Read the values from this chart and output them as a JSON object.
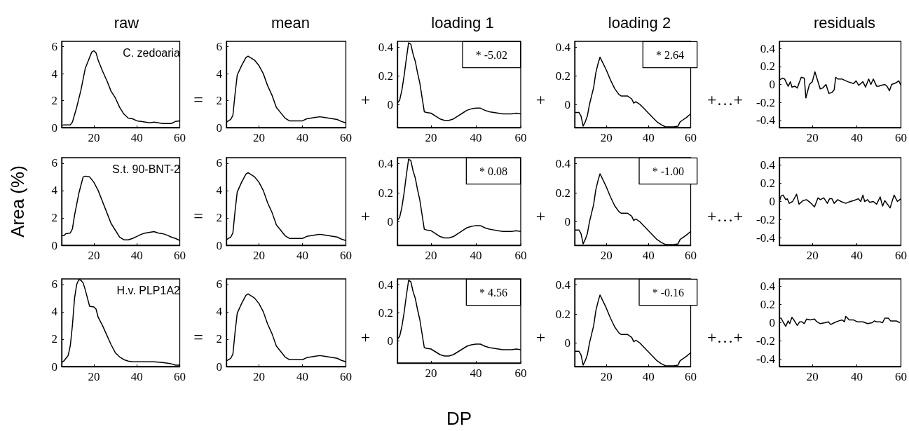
{
  "chart_data": [
    {
      "type": "line",
      "title": "raw",
      "color": "#000000",
      "xlim": [
        5,
        60
      ],
      "ylim": [
        0,
        6.4
      ],
      "xticks": [
        20,
        40,
        60
      ],
      "yticks": [
        0,
        2,
        4,
        6
      ],
      "annotations": [
        "C. zedoaria"
      ],
      "x": [
        5,
        6,
        9,
        10,
        12,
        14,
        16,
        18,
        19,
        20,
        21,
        22,
        24,
        26,
        28,
        30,
        32,
        34,
        36,
        38,
        40,
        42,
        44,
        46,
        48,
        50,
        52,
        54,
        56,
        58,
        60
      ],
      "values": [
        0.15,
        0.2,
        0.2,
        0.4,
        1.5,
        2.8,
        4.4,
        5.2,
        5.6,
        5.7,
        5.55,
        5.0,
        4.2,
        3.5,
        2.7,
        2.2,
        1.5,
        1.0,
        0.7,
        0.65,
        0.5,
        0.45,
        0.4,
        0.35,
        0.4,
        0.35,
        0.3,
        0.3,
        0.3,
        0.45,
        0.5
      ]
    },
    {
      "type": "line",
      "title": "mean",
      "color": "#000000",
      "xlim": [
        5,
        60
      ],
      "ylim": [
        0,
        6.4
      ],
      "xticks": [
        20,
        40,
        60
      ],
      "yticks": [
        0,
        2,
        4,
        6
      ],
      "annotations": [
        "="
      ],
      "x": [
        5,
        6,
        7,
        8,
        9,
        10,
        12,
        14,
        15,
        16,
        18,
        20,
        22,
        24,
        26,
        28,
        30,
        32,
        34,
        36,
        38,
        40,
        42,
        44,
        46,
        48,
        50,
        52,
        54,
        56,
        58,
        60
      ],
      "values": [
        0.4,
        0.5,
        0.6,
        0.9,
        2.5,
        3.9,
        4.6,
        5.2,
        5.3,
        5.2,
        5.0,
        4.6,
        4.0,
        3.1,
        2.4,
        1.5,
        1.1,
        0.7,
        0.5,
        0.5,
        0.5,
        0.5,
        0.65,
        0.7,
        0.75,
        0.8,
        0.75,
        0.7,
        0.65,
        0.6,
        0.45,
        0.35
      ]
    },
    {
      "type": "line",
      "title": "loading 1",
      "color": "#000000",
      "xlim": [
        5,
        60
      ],
      "ylim": [
        -0.16,
        0.44
      ],
      "xticks": [
        20,
        40,
        60
      ],
      "yticks": [
        0,
        0.2,
        0.4
      ],
      "annotations": [
        "+",
        "* -5.02"
      ],
      "x": [
        5,
        6,
        7,
        8,
        9,
        10,
        11,
        12,
        13,
        14,
        15,
        16,
        17,
        18,
        20,
        22,
        24,
        26,
        28,
        30,
        32,
        34,
        36,
        38,
        40,
        42,
        44,
        46,
        48,
        50,
        52,
        54,
        56,
        58,
        60
      ],
      "values": [
        0.01,
        0.03,
        0.1,
        0.2,
        0.32,
        0.43,
        0.42,
        0.35,
        0.3,
        0.22,
        0.15,
        0.05,
        -0.05,
        -0.055,
        -0.06,
        -0.08,
        -0.1,
        -0.11,
        -0.11,
        -0.1,
        -0.08,
        -0.06,
        -0.04,
        -0.03,
        -0.025,
        -0.025,
        -0.04,
        -0.05,
        -0.055,
        -0.06,
        -0.065,
        -0.065,
        -0.065,
        -0.06,
        -0.065
      ]
    },
    {
      "type": "line",
      "title": "loading 2",
      "color": "#000000",
      "xlim": [
        5,
        60
      ],
      "ylim": [
        -0.16,
        0.44
      ],
      "xticks": [
        20,
        40,
        60
      ],
      "yticks": [
        0,
        0.2,
        0.4
      ],
      "annotations": [
        "+",
        "* 2.64"
      ],
      "x": [
        5,
        7,
        8,
        9,
        10,
        11,
        12,
        14,
        15,
        16,
        17,
        18,
        20,
        22,
        24,
        26,
        27,
        28,
        30,
        32,
        33,
        34,
        36,
        38,
        40,
        42,
        44,
        46,
        48,
        50,
        52,
        54,
        55,
        56,
        58,
        60
      ],
      "values": [
        -0.055,
        -0.055,
        -0.08,
        -0.15,
        -0.12,
        -0.08,
        0.0,
        0.12,
        0.22,
        0.28,
        0.33,
        0.3,
        0.24,
        0.17,
        0.11,
        0.07,
        0.06,
        0.06,
        0.06,
        0.04,
        0.01,
        0.02,
        0.0,
        -0.03,
        -0.06,
        -0.09,
        -0.12,
        -0.14,
        -0.155,
        -0.155,
        -0.155,
        -0.15,
        -0.12,
        -0.11,
        -0.09,
        -0.065
      ]
    },
    {
      "type": "line",
      "title": "residuals",
      "color": "#000000",
      "xlim": [
        5,
        60
      ],
      "ylim": [
        -0.48,
        0.48
      ],
      "xticks": [
        20,
        40,
        60
      ],
      "yticks": [
        -0.4,
        -0.2,
        0,
        0.2,
        0.4
      ],
      "annotations": [
        "+…+"
      ],
      "x": [
        5.0,
        6.4,
        7.4,
        9.0,
        10.0,
        10.7,
        12.1,
        13.1,
        14.9,
        16.3,
        17.0,
        18.6,
        19.9,
        21.1,
        23.5,
        24.6,
        26.1,
        27.4,
        28.8,
        29.8,
        30.5,
        31.4,
        33.4,
        36.0,
        38.6,
        39.7,
        40.9,
        42.8,
        44.0,
        45.4,
        46.4,
        47.5,
        49.0,
        50.0,
        51.1,
        52.7,
        53.7,
        54.8,
        55.8,
        57.9,
        59.0,
        60.0
      ],
      "values": [
        0.05,
        0.07,
        0.06,
        -0.02,
        0.03,
        -0.03,
        -0.02,
        -0.04,
        0.08,
        0.07,
        -0.15,
        0.0,
        0.03,
        0.14,
        -0.05,
        -0.04,
        0.0,
        -0.1,
        -0.09,
        -0.06,
        0.08,
        0.06,
        0.06,
        0.03,
        0.01,
        0.04,
        -0.01,
        0.03,
        -0.03,
        0.06,
        0.0,
        0.06,
        -0.02,
        -0.02,
        -0.01,
        0.0,
        -0.02,
        -0.07,
        0.0,
        0.02,
        0.04,
        -0.01
      ]
    },
    {
      "type": "line",
      "ylabel": "Area (%)",
      "color": "#000000",
      "xlim": [
        5,
        60
      ],
      "ylim": [
        0,
        6.4
      ],
      "xticks": [
        20,
        40,
        60
      ],
      "yticks": [
        0,
        2,
        4,
        6
      ],
      "annotations": [
        "S.t. 90-BNT-2"
      ],
      "x": [
        5,
        6,
        7,
        9,
        10,
        11,
        12,
        13,
        14,
        15,
        16,
        18,
        20,
        22,
        24,
        26,
        28,
        30,
        32,
        34,
        36,
        38,
        40,
        42,
        44,
        46,
        48,
        50,
        52,
        54,
        56,
        58,
        60
      ],
      "values": [
        0.7,
        0.7,
        0.85,
        0.9,
        1.2,
        2.2,
        3.0,
        3.8,
        4.4,
        5.0,
        5.05,
        5.0,
        4.6,
        4.0,
        3.2,
        2.4,
        1.6,
        1.1,
        0.6,
        0.4,
        0.4,
        0.5,
        0.65,
        0.8,
        0.9,
        0.95,
        1.0,
        0.9,
        0.85,
        0.75,
        0.6,
        0.5,
        0.35
      ]
    },
    {
      "type": "line",
      "color": "#000000",
      "xlim": [
        5,
        60
      ],
      "ylim": [
        0,
        6.4
      ],
      "xticks": [
        20,
        40,
        60
      ],
      "yticks": [
        0,
        2,
        4,
        6
      ],
      "annotations": [
        "="
      ],
      "x": [
        5,
        6,
        7,
        8,
        9,
        10,
        12,
        14,
        15,
        16,
        18,
        20,
        22,
        24,
        26,
        28,
        30,
        32,
        34,
        36,
        38,
        40,
        42,
        44,
        46,
        48,
        50,
        52,
        54,
        56,
        58,
        60
      ],
      "values": [
        0.4,
        0.5,
        0.6,
        0.9,
        2.5,
        3.9,
        4.6,
        5.2,
        5.3,
        5.2,
        5.0,
        4.6,
        4.0,
        3.1,
        2.4,
        1.5,
        1.1,
        0.7,
        0.5,
        0.5,
        0.5,
        0.5,
        0.65,
        0.7,
        0.75,
        0.8,
        0.75,
        0.7,
        0.65,
        0.6,
        0.45,
        0.35
      ]
    },
    {
      "type": "line",
      "color": "#000000",
      "xlim": [
        5,
        60
      ],
      "ylim": [
        -0.16,
        0.44
      ],
      "xticks": [
        20,
        40,
        60
      ],
      "yticks": [
        0,
        0.2,
        0.4
      ],
      "annotations": [
        "+",
        "* 0.08"
      ],
      "x": [
        5,
        6,
        7,
        8,
        9,
        10,
        11,
        12,
        13,
        14,
        15,
        16,
        17,
        18,
        20,
        22,
        24,
        26,
        28,
        30,
        32,
        34,
        36,
        38,
        40,
        42,
        44,
        46,
        48,
        50,
        52,
        54,
        56,
        58,
        60
      ],
      "values": [
        0.01,
        0.03,
        0.1,
        0.2,
        0.32,
        0.43,
        0.42,
        0.35,
        0.3,
        0.22,
        0.15,
        0.05,
        -0.05,
        -0.055,
        -0.06,
        -0.08,
        -0.1,
        -0.11,
        -0.11,
        -0.1,
        -0.08,
        -0.06,
        -0.04,
        -0.03,
        -0.025,
        -0.025,
        -0.04,
        -0.05,
        -0.055,
        -0.06,
        -0.065,
        -0.065,
        -0.065,
        -0.06,
        -0.065
      ]
    },
    {
      "type": "line",
      "color": "#000000",
      "xlim": [
        5,
        60
      ],
      "ylim": [
        -0.16,
        0.44
      ],
      "xticks": [
        20,
        40,
        60
      ],
      "yticks": [
        0,
        0.2,
        0.4
      ],
      "annotations": [
        "+",
        "* -1.00"
      ],
      "x": [
        5,
        7,
        8,
        9,
        10,
        11,
        12,
        14,
        15,
        16,
        17,
        18,
        20,
        22,
        24,
        26,
        27,
        28,
        30,
        32,
        33,
        34,
        36,
        38,
        40,
        42,
        44,
        46,
        48,
        50,
        52,
        54,
        55,
        56,
        58,
        60
      ],
      "values": [
        -0.055,
        -0.055,
        -0.08,
        -0.15,
        -0.12,
        -0.08,
        0.0,
        0.12,
        0.22,
        0.28,
        0.33,
        0.3,
        0.24,
        0.17,
        0.11,
        0.07,
        0.06,
        0.06,
        0.06,
        0.04,
        0.01,
        0.02,
        0.0,
        -0.03,
        -0.06,
        -0.09,
        -0.12,
        -0.14,
        -0.155,
        -0.155,
        -0.155,
        -0.15,
        -0.12,
        -0.11,
        -0.09,
        -0.065
      ]
    },
    {
      "type": "line",
      "color": "#000000",
      "xlim": [
        5,
        60
      ],
      "ylim": [
        -0.48,
        0.48
      ],
      "xticks": [
        20,
        40,
        60
      ],
      "yticks": [
        -0.4,
        -0.2,
        0,
        0.2,
        0.4
      ],
      "annotations": [
        "+…+"
      ],
      "x": [
        5.0,
        5.8,
        6.7,
        7.9,
        8.6,
        9.5,
        11.0,
        12.8,
        13.9,
        15.7,
        17.3,
        18.9,
        20.9,
        22.5,
        23.5,
        25.1,
        26.7,
        27.7,
        28.8,
        29.8,
        31.4,
        32.9,
        35.0,
        37.1,
        38.6,
        40.7,
        41.8,
        42.8,
        43.6,
        44.9,
        45.9,
        47.5,
        49.0,
        50.6,
        51.7,
        52.7,
        55.1,
        56.9,
        58.4,
        60.0
      ],
      "values": [
        0.0,
        0.06,
        0.07,
        0.02,
        0.03,
        -0.02,
        0.0,
        0.08,
        -0.03,
        0.01,
        0.02,
        -0.01,
        -0.06,
        0.04,
        0.02,
        0.04,
        -0.02,
        0.03,
        0.03,
        -0.02,
        0.02,
        0.0,
        -0.02,
        0.0,
        0.01,
        0.03,
        0.0,
        0.07,
        0.0,
        0.02,
        -0.01,
        0.0,
        -0.03,
        0.05,
        -0.05,
        0.01,
        -0.07,
        0.07,
        0.0,
        0.03
      ]
    },
    {
      "type": "line",
      "color": "#000000",
      "xlim": [
        5,
        60
      ],
      "ylim": [
        0,
        6.4
      ],
      "xticks": [
        20,
        40,
        60
      ],
      "yticks": [
        0,
        2,
        4,
        6
      ],
      "annotations": [
        "H.v. PLP1A2"
      ],
      "x": [
        5,
        6,
        7,
        8,
        9,
        10,
        11,
        12,
        13,
        14,
        15,
        16,
        17,
        18,
        20,
        21,
        22,
        24,
        26,
        28,
        30,
        32,
        34,
        36,
        38,
        40,
        44,
        48,
        52,
        56,
        58,
        60
      ],
      "values": [
        0.3,
        0.4,
        0.6,
        0.8,
        1.5,
        3.0,
        5.0,
        6.0,
        6.35,
        6.3,
        6.1,
        5.6,
        5.0,
        4.4,
        4.35,
        4.2,
        3.6,
        3.0,
        2.3,
        1.6,
        1.0,
        0.7,
        0.5,
        0.4,
        0.35,
        0.35,
        0.35,
        0.35,
        0.3,
        0.2,
        0.1,
        0.1
      ]
    },
    {
      "type": "line",
      "color": "#000000",
      "xlim": [
        5,
        60
      ],
      "ylim": [
        0,
        6.4
      ],
      "xticks": [
        20,
        40,
        60
      ],
      "yticks": [
        0,
        2,
        4,
        6
      ],
      "annotations": [
        "="
      ],
      "x": [
        5,
        6,
        7,
        8,
        9,
        10,
        12,
        14,
        15,
        16,
        18,
        20,
        22,
        24,
        26,
        28,
        30,
        32,
        34,
        36,
        38,
        40,
        42,
        44,
        46,
        48,
        50,
        52,
        54,
        56,
        58,
        60
      ],
      "values": [
        0.4,
        0.5,
        0.6,
        0.9,
        2.5,
        3.9,
        4.6,
        5.2,
        5.3,
        5.2,
        5.0,
        4.6,
        4.0,
        3.1,
        2.4,
        1.5,
        1.1,
        0.7,
        0.5,
        0.5,
        0.5,
        0.5,
        0.65,
        0.7,
        0.75,
        0.8,
        0.75,
        0.7,
        0.65,
        0.6,
        0.45,
        0.35
      ]
    },
    {
      "type": "line",
      "xlabel": "DP",
      "color": "#000000",
      "xlim": [
        5,
        60
      ],
      "ylim": [
        -0.16,
        0.44
      ],
      "xticks": [
        20,
        40,
        60
      ],
      "yticks": [
        0,
        0.2,
        0.4
      ],
      "annotations": [
        "+",
        "* 4.56"
      ],
      "x": [
        5,
        6,
        7,
        8,
        9,
        10,
        11,
        12,
        13,
        14,
        15,
        16,
        17,
        18,
        20,
        22,
        24,
        26,
        28,
        30,
        32,
        34,
        36,
        38,
        40,
        42,
        44,
        46,
        48,
        50,
        52,
        54,
        56,
        58,
        60
      ],
      "values": [
        0.01,
        0.03,
        0.1,
        0.2,
        0.32,
        0.43,
        0.42,
        0.35,
        0.3,
        0.22,
        0.15,
        0.05,
        -0.05,
        -0.055,
        -0.06,
        -0.08,
        -0.1,
        -0.11,
        -0.11,
        -0.1,
        -0.08,
        -0.06,
        -0.04,
        -0.03,
        -0.025,
        -0.025,
        -0.04,
        -0.05,
        -0.055,
        -0.06,
        -0.065,
        -0.065,
        -0.065,
        -0.06,
        -0.065
      ]
    },
    {
      "type": "line",
      "color": "#000000",
      "xlim": [
        5,
        60
      ],
      "ylim": [
        -0.16,
        0.44
      ],
      "xticks": [
        20,
        40,
        60
      ],
      "yticks": [
        0,
        0.2,
        0.4
      ],
      "annotations": [
        "+",
        "* -0.16"
      ],
      "x": [
        5,
        7,
        8,
        9,
        10,
        11,
        12,
        14,
        15,
        16,
        17,
        18,
        20,
        22,
        24,
        26,
        27,
        28,
        30,
        32,
        33,
        34,
        36,
        38,
        40,
        42,
        44,
        46,
        48,
        50,
        52,
        54,
        55,
        56,
        58,
        60
      ],
      "values": [
        -0.055,
        -0.055,
        -0.08,
        -0.15,
        -0.12,
        -0.08,
        0.0,
        0.12,
        0.22,
        0.28,
        0.33,
        0.3,
        0.24,
        0.17,
        0.11,
        0.07,
        0.06,
        0.06,
        0.06,
        0.04,
        0.01,
        0.02,
        0.0,
        -0.03,
        -0.06,
        -0.09,
        -0.12,
        -0.14,
        -0.155,
        -0.155,
        -0.155,
        -0.15,
        -0.12,
        -0.11,
        -0.09,
        -0.065
      ]
    },
    {
      "type": "line",
      "color": "#000000",
      "xlim": [
        5,
        60
      ],
      "ylim": [
        -0.48,
        0.48
      ],
      "xticks": [
        20,
        40,
        60
      ],
      "yticks": [
        -0.4,
        -0.2,
        0,
        0.2,
        0.4
      ],
      "annotations": [
        "+…+"
      ],
      "x": [
        5.0,
        5.8,
        6.9,
        7.9,
        9.0,
        9.7,
        10.7,
        11.6,
        13.1,
        14.2,
        15.2,
        16.3,
        17.3,
        18.9,
        20.9,
        22.0,
        23.5,
        25.6,
        27.2,
        28.2,
        29.8,
        31.9,
        33.4,
        34.5,
        35.0,
        36.6,
        38.6,
        40.2,
        42.8,
        44.9,
        47.0,
        48.0,
        49.0,
        50.6,
        51.7,
        52.7,
        54.3,
        55.3,
        57.9,
        59.5
      ],
      "values": [
        0.05,
        0.05,
        0.0,
        -0.04,
        0.02,
        -0.01,
        0.06,
        0.03,
        -0.03,
        0.01,
        0.01,
        -0.01,
        0.04,
        0.03,
        0.04,
        0.01,
        -0.01,
        0.0,
        0.01,
        -0.02,
        0.0,
        0.02,
        0.03,
        0.01,
        0.07,
        0.03,
        0.03,
        0.01,
        0.01,
        -0.01,
        0.0,
        0.02,
        0.01,
        0.01,
        0.0,
        0.05,
        0.05,
        0.02,
        0.02,
        0.0
      ]
    }
  ]
}
